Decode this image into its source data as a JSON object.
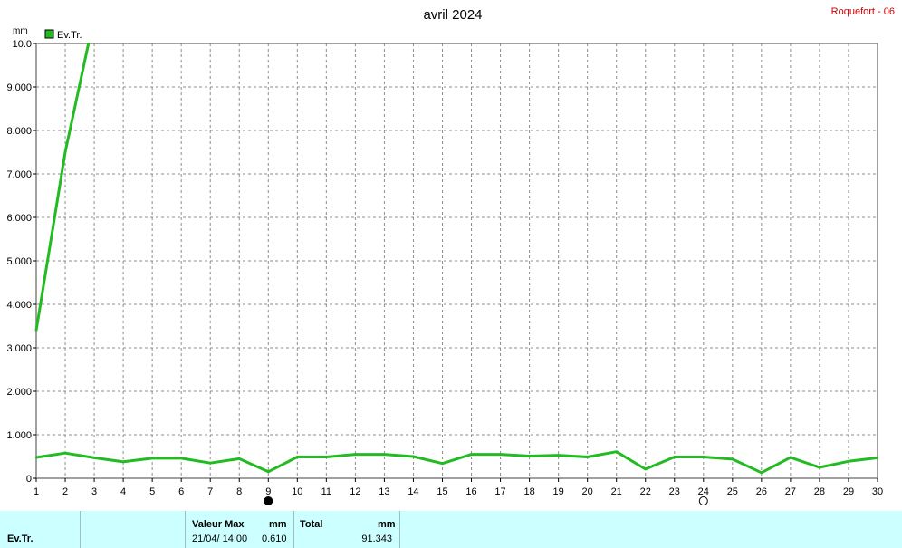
{
  "chart_data": {
    "type": "line",
    "title": "avril 2024",
    "station": "Roquefort - 06",
    "ylabel": "mm",
    "ylim": [
      0,
      10
    ],
    "yticks": [
      "0",
      "1.000",
      "2.000",
      "3.000",
      "4.000",
      "5.000",
      "6.000",
      "7.000",
      "8.000",
      "9.000",
      "10.0"
    ],
    "xlim": [
      1,
      30
    ],
    "x": [
      1,
      2,
      3,
      4,
      5,
      6,
      7,
      8,
      9,
      10,
      11,
      12,
      13,
      14,
      15,
      16,
      17,
      18,
      19,
      20,
      21,
      22,
      23,
      24,
      25,
      26,
      27,
      28,
      29,
      30
    ],
    "grid": true,
    "legend_position": "top-left",
    "markers": [
      {
        "day": 9,
        "symbol": "filled-circle"
      },
      {
        "day": 24,
        "symbol": "open-circle"
      }
    ],
    "series": [
      {
        "name": "Ev.Tr.",
        "color": "#22bb22",
        "values": [
          0.48,
          0.58,
          0.47,
          0.38,
          0.46,
          0.46,
          0.35,
          0.45,
          0.15,
          0.49,
          0.49,
          0.55,
          0.55,
          0.5,
          0.34,
          0.55,
          0.55,
          0.51,
          0.53,
          0.49,
          0.61,
          0.21,
          0.49,
          0.49,
          0.44,
          0.13,
          0.48,
          0.25,
          0.39,
          0.47
        ]
      },
      {
        "name": "",
        "color": "#22bb22",
        "points": [
          [
            1,
            3.4
          ],
          [
            2,
            7.5
          ],
          [
            2.8,
            10.0
          ]
        ]
      }
    ]
  },
  "footer": {
    "series_label": "Ev.Tr.",
    "max_header": "Valeur Max",
    "max_unit": "mm",
    "max_datetime": "21/04/  14:00",
    "max_value": "0.610",
    "total_header": "Total",
    "total_unit": "mm",
    "total_value": "91.343"
  }
}
